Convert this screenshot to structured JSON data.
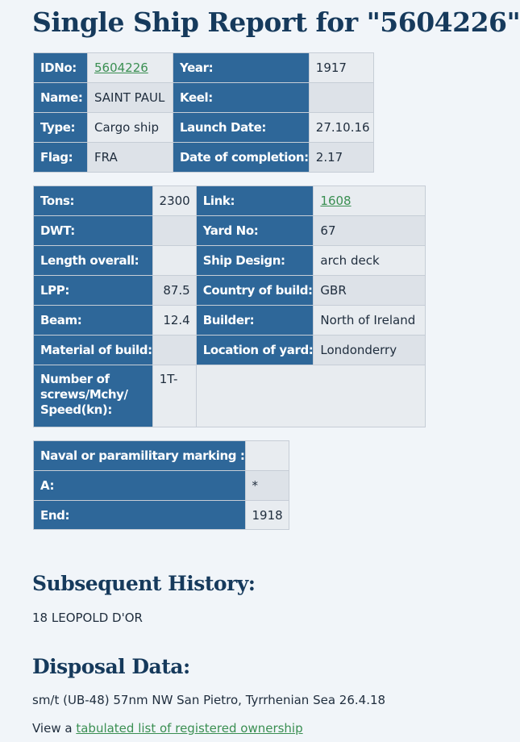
{
  "title": "Single Ship Report for \"5604226\"",
  "table1": {
    "idno_label": "IDNo:",
    "idno_value": "5604226",
    "year_label": "Year:",
    "year_value": "1917",
    "name_label": "Name:",
    "name_value": "SAINT PAUL",
    "keel_label": "Keel:",
    "keel_value": "",
    "type_label": "Type:",
    "type_value": "Cargo ship",
    "launch_label": "Launch Date:",
    "launch_value": "27.10.16",
    "flag_label": "Flag:",
    "flag_value": "FRA",
    "completion_label": "Date of completion:",
    "completion_value": "2.17"
  },
  "table2": {
    "tons_label": "Tons:",
    "tons_value": "2300",
    "link_label": "Link:",
    "link_value": "1608",
    "dwt_label": "DWT:",
    "dwt_value": "",
    "yard_label": "Yard No:",
    "yard_value": "67",
    "length_label": "Length overall:",
    "length_value": "",
    "design_label": "Ship Design:",
    "design_value": "arch deck",
    "lpp_label": "LPP:",
    "lpp_value": "87.5",
    "country_label": "Country of build:",
    "country_value": "GBR",
    "beam_label": "Beam:",
    "beam_value": "12.4",
    "builder_label": "Builder:",
    "builder_value": "North of Ireland",
    "material_label": "Material of build:",
    "material_value": "",
    "location_label": "Location of yard:",
    "location_value": "Londonderry",
    "screws_label": "Number of screws/Mchy/ Speed(kn):",
    "screws_value": "1T-"
  },
  "table3": {
    "naval_label": "Naval or paramilitary marking :",
    "naval_value": "",
    "a_label": "A:",
    "a_value": "*",
    "end_label": "End:",
    "end_value": "1918"
  },
  "subsequent": {
    "heading": "Subsequent History:",
    "text": "18 LEOPOLD D'OR"
  },
  "disposal": {
    "heading": "Disposal Data:",
    "text": "sm/t (UB-48) 57nm NW San Pietro, Tyrrhenian Sea 26.4.18",
    "view_prefix": "View a",
    "view_link": "tabulated list of registered ownership"
  },
  "colors": {
    "label_bg": "#2e6799",
    "value_bg": "#dde2e8",
    "heading": "#163a5c",
    "link": "#3a8f52",
    "page_bg": "#f1f5f9"
  }
}
